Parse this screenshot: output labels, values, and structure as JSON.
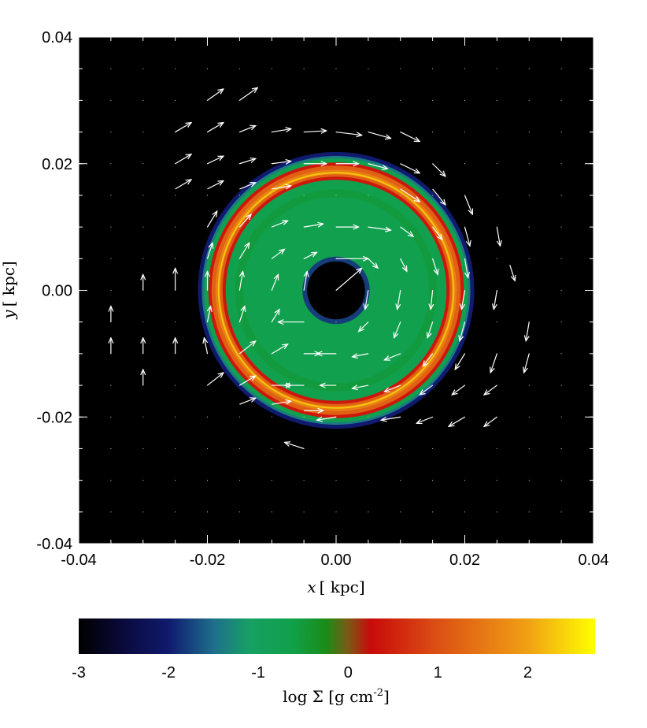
{
  "chart_data": [
    {
      "type": "heatmap",
      "title": "",
      "xlabel": "x [ kpc]",
      "ylabel": "y [ kpc]",
      "xlim": [
        -0.04,
        0.04
      ],
      "ylim": [
        -0.04,
        0.04
      ],
      "x_ticks": [
        "-0.04",
        "-0.02",
        "0.00",
        "0.02",
        "0.04"
      ],
      "y_ticks": [
        "-0.04",
        "-0.02",
        "0.00",
        "0.02",
        "0.04"
      ],
      "grid": false,
      "background": "#000000",
      "structure": {
        "kind": "ring",
        "center": [
          0.0,
          0.0
        ],
        "inner_hole_radius": 0.0045,
        "disk_radius": 0.0205,
        "bright_ring_radius": 0.0185,
        "bright_ring_log_sigma": 1.6,
        "disk_log_sigma": -0.7
      },
      "velocity_field": {
        "sense": "clockwise",
        "arrow_color": "#ffffff",
        "vectors": [
          {
            "x": -0.02,
            "y": 0.03,
            "dx": 0.0025,
            "dy": 0.0018
          },
          {
            "x": -0.015,
            "y": 0.03,
            "dx": 0.0028,
            "dy": 0.002
          },
          {
            "x": -0.025,
            "y": 0.025,
            "dx": 0.0025,
            "dy": 0.0015
          },
          {
            "x": -0.02,
            "y": 0.025,
            "dx": 0.0025,
            "dy": 0.0015
          },
          {
            "x": -0.015,
            "y": 0.025,
            "dx": 0.0025,
            "dy": 0.001
          },
          {
            "x": -0.01,
            "y": 0.025,
            "dx": 0.003,
            "dy": 0.0005
          },
          {
            "x": -0.005,
            "y": 0.025,
            "dx": 0.0035,
            "dy": 0.0002
          },
          {
            "x": 0.0,
            "y": 0.025,
            "dx": 0.004,
            "dy": -0.0005
          },
          {
            "x": 0.005,
            "y": 0.025,
            "dx": 0.0035,
            "dy": -0.001
          },
          {
            "x": 0.01,
            "y": 0.025,
            "dx": 0.003,
            "dy": -0.0015
          },
          {
            "x": -0.025,
            "y": 0.02,
            "dx": 0.0025,
            "dy": 0.0015
          },
          {
            "x": -0.02,
            "y": 0.02,
            "dx": 0.0025,
            "dy": 0.0012
          },
          {
            "x": -0.015,
            "y": 0.02,
            "dx": 0.0025,
            "dy": 0.0008
          },
          {
            "x": -0.01,
            "y": 0.02,
            "dx": 0.003,
            "dy": 0.0004
          },
          {
            "x": -0.005,
            "y": 0.02,
            "dx": 0.0035,
            "dy": 0.0
          },
          {
            "x": 0.0,
            "y": 0.02,
            "dx": 0.0035,
            "dy": 0.0
          },
          {
            "x": 0.005,
            "y": 0.02,
            "dx": 0.003,
            "dy": -0.0008
          },
          {
            "x": 0.01,
            "y": 0.02,
            "dx": 0.003,
            "dy": -0.0015
          },
          {
            "x": 0.015,
            "y": 0.02,
            "dx": 0.002,
            "dy": -0.002
          },
          {
            "x": -0.025,
            "y": 0.016,
            "dx": 0.0025,
            "dy": 0.0015
          },
          {
            "x": -0.02,
            "y": 0.016,
            "dx": 0.0025,
            "dy": 0.0013
          },
          {
            "x": -0.015,
            "y": 0.016,
            "dx": 0.0025,
            "dy": 0.001
          },
          {
            "x": -0.01,
            "y": 0.016,
            "dx": 0.003,
            "dy": 0.0005
          },
          {
            "x": 0.01,
            "y": 0.016,
            "dx": 0.003,
            "dy": -0.002
          },
          {
            "x": 0.015,
            "y": 0.016,
            "dx": 0.002,
            "dy": -0.0025
          },
          {
            "x": 0.02,
            "y": 0.015,
            "dx": 0.0012,
            "dy": -0.003
          },
          {
            "x": -0.02,
            "y": 0.01,
            "dx": 0.0015,
            "dy": 0.0025
          },
          {
            "x": -0.015,
            "y": 0.01,
            "dx": 0.0018,
            "dy": 0.002
          },
          {
            "x": -0.01,
            "y": 0.01,
            "dx": 0.0025,
            "dy": 0.001
          },
          {
            "x": -0.005,
            "y": 0.01,
            "dx": 0.003,
            "dy": 0.0005
          },
          {
            "x": 0.0,
            "y": 0.01,
            "dx": 0.0035,
            "dy": 0.0
          },
          {
            "x": 0.005,
            "y": 0.01,
            "dx": 0.0035,
            "dy": -0.0005
          },
          {
            "x": 0.01,
            "y": 0.01,
            "dx": 0.002,
            "dy": -0.0015
          },
          {
            "x": 0.015,
            "y": 0.01,
            "dx": 0.0015,
            "dy": -0.002
          },
          {
            "x": 0.02,
            "y": 0.01,
            "dx": 0.0008,
            "dy": -0.003
          },
          {
            "x": 0.025,
            "y": 0.01,
            "dx": 0.0005,
            "dy": -0.003
          },
          {
            "x": -0.02,
            "y": 0.005,
            "dx": 0.0008,
            "dy": 0.0025
          },
          {
            "x": -0.015,
            "y": 0.005,
            "dx": 0.0015,
            "dy": 0.0025
          },
          {
            "x": -0.01,
            "y": 0.005,
            "dx": 0.002,
            "dy": 0.0015
          },
          {
            "x": -0.005,
            "y": 0.005,
            "dx": 0.002,
            "dy": 0.001
          },
          {
            "x": 0.0,
            "y": 0.005,
            "dx": 0.005,
            "dy": 0.0
          },
          {
            "x": 0.005,
            "y": 0.005,
            "dx": 0.0015,
            "dy": -0.0015
          },
          {
            "x": 0.01,
            "y": 0.005,
            "dx": 0.001,
            "dy": -0.002
          },
          {
            "x": 0.015,
            "y": 0.005,
            "dx": 0.0008,
            "dy": -0.0025
          },
          {
            "x": 0.02,
            "y": 0.005,
            "dx": 0.0005,
            "dy": -0.003
          },
          {
            "x": 0.027,
            "y": 0.004,
            "dx": 0.0008,
            "dy": -0.0025
          },
          {
            "x": -0.03,
            "y": 0.0,
            "dx": 0.0,
            "dy": 0.0025
          },
          {
            "x": -0.025,
            "y": 0.0,
            "dx": 0.0,
            "dy": 0.0035
          },
          {
            "x": -0.02,
            "y": 0.0,
            "dx": 0.0,
            "dy": 0.003
          },
          {
            "x": -0.015,
            "y": 0.0,
            "dx": 0.0005,
            "dy": 0.003
          },
          {
            "x": -0.01,
            "y": 0.0,
            "dx": 0.001,
            "dy": 0.0025
          },
          {
            "x": -0.005,
            "y": 0.0,
            "dx": 0.0005,
            "dy": 0.003
          },
          {
            "x": 0.0,
            "y": 0.0,
            "dx": 0.004,
            "dy": 0.0035
          },
          {
            "x": 0.005,
            "y": 0.0,
            "dx": -0.0005,
            "dy": -0.003
          },
          {
            "x": 0.01,
            "y": 0.0,
            "dx": -0.0005,
            "dy": -0.003
          },
          {
            "x": 0.015,
            "y": 0.0,
            "dx": -0.0003,
            "dy": -0.003
          },
          {
            "x": 0.02,
            "y": 0.0,
            "dx": -0.0005,
            "dy": -0.003
          },
          {
            "x": 0.025,
            "y": 0.0,
            "dx": -0.0005,
            "dy": -0.003
          },
          {
            "x": -0.035,
            "y": -0.005,
            "dx": 0.0,
            "dy": 0.0025
          },
          {
            "x": -0.02,
            "y": -0.005,
            "dx": 0.0005,
            "dy": 0.0025
          },
          {
            "x": -0.015,
            "y": -0.005,
            "dx": 0.0008,
            "dy": 0.0025
          },
          {
            "x": -0.01,
            "y": -0.005,
            "dx": 0.0012,
            "dy": 0.002
          },
          {
            "x": -0.005,
            "y": -0.005,
            "dx": -0.004,
            "dy": 0.0
          },
          {
            "x": 0.005,
            "y": -0.005,
            "dx": -0.0015,
            "dy": -0.0015
          },
          {
            "x": 0.01,
            "y": -0.005,
            "dx": -0.001,
            "dy": -0.0025
          },
          {
            "x": 0.015,
            "y": -0.005,
            "dx": -0.0008,
            "dy": -0.0025
          },
          {
            "x": 0.02,
            "y": -0.005,
            "dx": -0.0008,
            "dy": -0.003
          },
          {
            "x": 0.03,
            "y": -0.005,
            "dx": -0.0005,
            "dy": -0.003
          },
          {
            "x": -0.035,
            "y": -0.01,
            "dx": 0.0,
            "dy": 0.0025
          },
          {
            "x": -0.03,
            "y": -0.01,
            "dx": 0.0,
            "dy": 0.0025
          },
          {
            "x": -0.025,
            "y": -0.01,
            "dx": 0.0,
            "dy": 0.0025
          },
          {
            "x": -0.02,
            "y": -0.01,
            "dx": -0.0005,
            "dy": 0.0025
          },
          {
            "x": -0.015,
            "y": -0.01,
            "dx": 0.0025,
            "dy": 0.002
          },
          {
            "x": -0.01,
            "y": -0.01,
            "dx": 0.0025,
            "dy": 0.0015
          },
          {
            "x": -0.005,
            "y": -0.01,
            "dx": 0.0025,
            "dy": 0.0
          },
          {
            "x": 0.0,
            "y": -0.01,
            "dx": -0.003,
            "dy": 0.0
          },
          {
            "x": 0.005,
            "y": -0.01,
            "dx": -0.0025,
            "dy": -0.0005
          },
          {
            "x": 0.01,
            "y": -0.01,
            "dx": -0.0025,
            "dy": -0.001
          },
          {
            "x": 0.015,
            "y": -0.01,
            "dx": -0.0015,
            "dy": -0.002
          },
          {
            "x": 0.02,
            "y": -0.01,
            "dx": -0.0015,
            "dy": -0.0025
          },
          {
            "x": 0.025,
            "y": -0.01,
            "dx": -0.001,
            "dy": -0.003
          },
          {
            "x": 0.03,
            "y": -0.01,
            "dx": -0.0008,
            "dy": -0.003
          },
          {
            "x": -0.03,
            "y": -0.015,
            "dx": 0.0,
            "dy": 0.0025
          },
          {
            "x": -0.02,
            "y": -0.015,
            "dx": 0.0025,
            "dy": 0.002
          },
          {
            "x": -0.015,
            "y": -0.015,
            "dx": 0.0025,
            "dy": 0.0015
          },
          {
            "x": -0.01,
            "y": -0.015,
            "dx": 0.003,
            "dy": 0.0
          },
          {
            "x": -0.005,
            "y": -0.015,
            "dx": -0.003,
            "dy": 0.0
          },
          {
            "x": 0.0,
            "y": -0.015,
            "dx": -0.0025,
            "dy": 0.0
          },
          {
            "x": 0.005,
            "y": -0.015,
            "dx": -0.0025,
            "dy": -0.0005
          },
          {
            "x": 0.01,
            "y": -0.015,
            "dx": -0.0025,
            "dy": -0.001
          },
          {
            "x": 0.015,
            "y": -0.015,
            "dx": -0.002,
            "dy": -0.0015
          },
          {
            "x": 0.02,
            "y": -0.015,
            "dx": -0.002,
            "dy": -0.0015
          },
          {
            "x": 0.025,
            "y": -0.015,
            "dx": -0.002,
            "dy": -0.0015
          },
          {
            "x": -0.015,
            "y": -0.018,
            "dx": 0.0025,
            "dy": 0.001
          },
          {
            "x": -0.01,
            "y": -0.018,
            "dx": 0.003,
            "dy": 0.0005
          },
          {
            "x": -0.005,
            "y": -0.019,
            "dx": 0.003,
            "dy": 0.0
          },
          {
            "x": 0.0,
            "y": -0.02,
            "dx": -0.003,
            "dy": -0.0005
          },
          {
            "x": 0.01,
            "y": -0.02,
            "dx": -0.003,
            "dy": -0.0005
          },
          {
            "x": 0.015,
            "y": -0.02,
            "dx": -0.0025,
            "dy": -0.001
          },
          {
            "x": 0.02,
            "y": -0.02,
            "dx": -0.0025,
            "dy": -0.0015
          },
          {
            "x": 0.025,
            "y": -0.02,
            "dx": -0.002,
            "dy": -0.0015
          },
          {
            "x": -0.005,
            "y": -0.025,
            "dx": -0.003,
            "dy": 0.001
          }
        ]
      }
    },
    {
      "type": "colorbar",
      "label": "log Σ [g cm-2]",
      "range": [
        -3,
        2.75
      ],
      "ticks": [
        "-3",
        "-2",
        "-1",
        "0",
        "1",
        "2"
      ],
      "tick_values": [
        -3,
        -2,
        -1,
        0,
        1,
        2
      ],
      "colormap_stops": [
        {
          "value": -3.0,
          "color": "#000000"
        },
        {
          "value": -2.5,
          "color": "#0a0a3c"
        },
        {
          "value": -2.0,
          "color": "#101a6e"
        },
        {
          "value": -1.5,
          "color": "#1e6e8c"
        },
        {
          "value": -1.1,
          "color": "#16a064"
        },
        {
          "value": -0.6,
          "color": "#10a048"
        },
        {
          "value": -0.25,
          "color": "#1a8c1a"
        },
        {
          "value": 0.0,
          "color": "#7a5a14"
        },
        {
          "value": 0.25,
          "color": "#c80a0a"
        },
        {
          "value": 1.0,
          "color": "#dc5014"
        },
        {
          "value": 2.0,
          "color": "#f0a014"
        },
        {
          "value": 2.75,
          "color": "#ffff00"
        }
      ]
    }
  ],
  "labels": {
    "x_axis_var": "x",
    "x_axis_unit": "[ kpc]",
    "y_axis_var": "y",
    "y_axis_unit": "[ kpc]",
    "cb_prefix": "log Σ [g cm",
    "cb_exp": "-2",
    "cb_suffix": "]"
  }
}
